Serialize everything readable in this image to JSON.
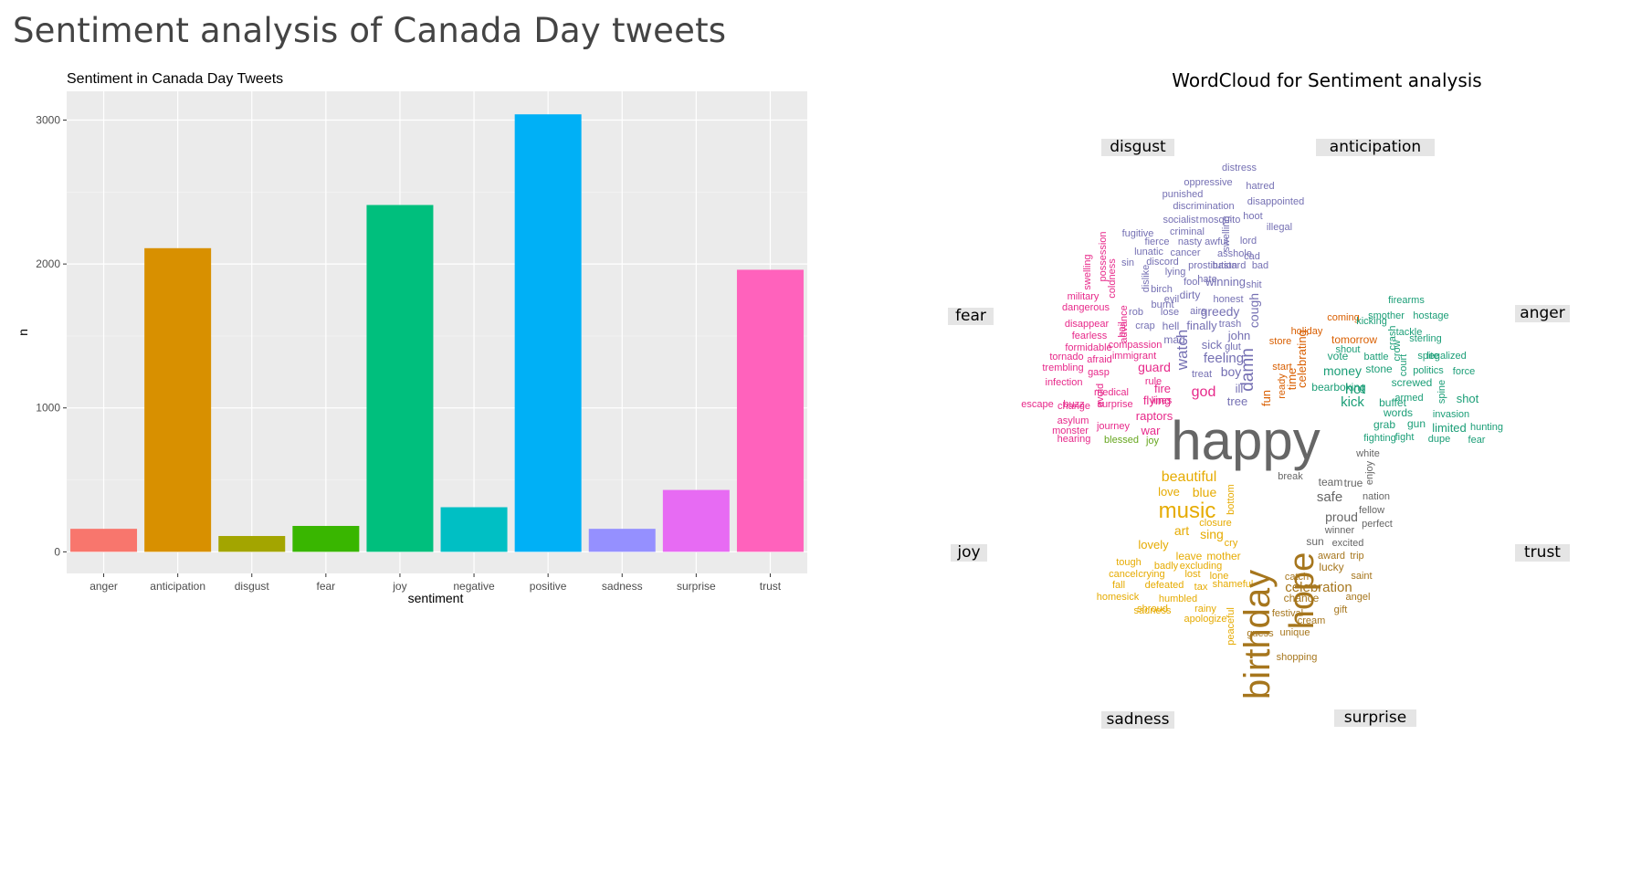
{
  "page_title": "Sentiment analysis of Canada Day tweets",
  "colors": {
    "panel_bg": "#EBEBEB",
    "grid": "#FFFFFF",
    "axis_text": "#4D4D4D",
    "title_text": "#000000",
    "label_box": "#E5E5E5"
  },
  "chart_data": [
    {
      "type": "bar",
      "title": "Sentiment in Canada Day Tweets",
      "xlabel": "sentiment",
      "ylabel": "n",
      "categories": [
        "anger",
        "anticipation",
        "disgust",
        "fear",
        "joy",
        "negative",
        "positive",
        "sadness",
        "surprise",
        "trust"
      ],
      "values": [
        160,
        2110,
        110,
        180,
        2410,
        310,
        3040,
        160,
        430,
        1960
      ],
      "colors": [
        "#F8766D",
        "#D89000",
        "#A3A500",
        "#39B600",
        "#00BF7D",
        "#00BFC4",
        "#00B0F6",
        "#9590FF",
        "#E76BF3",
        "#FF62BC"
      ],
      "yticks": [
        0,
        1000,
        2000,
        3000
      ],
      "ylim": [
        -150,
        3200
      ],
      "grid": true,
      "legend": "none"
    },
    {
      "type": "wordcloud",
      "title": "WordCloud for Sentiment analysis",
      "group_labels": [
        "disgust",
        "anticipation",
        "fear",
        "anger",
        "joy",
        "trust",
        "sadness",
        "surprise"
      ],
      "groups": [
        {
          "sentiment": "disgust",
          "color": "#7570B3",
          "words": [
            {
              "w": "distress",
              "s": 11
            },
            {
              "w": "oppressive",
              "s": 11
            },
            {
              "w": "hatred",
              "s": 11
            },
            {
              "w": "punished",
              "s": 11
            },
            {
              "w": "disappointed",
              "s": 11
            },
            {
              "w": "discrimination",
              "s": 11
            },
            {
              "w": "hoot",
              "s": 11
            },
            {
              "w": "socialist",
              "s": 11
            },
            {
              "w": "mosquito",
              "s": 11
            },
            {
              "w": "illegal",
              "s": 11
            },
            {
              "w": "fugitive",
              "s": 11
            },
            {
              "w": "criminal",
              "s": 11
            },
            {
              "w": "lord",
              "s": 11
            },
            {
              "w": "fierce",
              "s": 11
            },
            {
              "w": "nasty",
              "s": 11
            },
            {
              "w": "awful",
              "s": 11
            },
            {
              "w": "lunatic",
              "s": 11
            },
            {
              "w": "cancer",
              "s": 11
            },
            {
              "w": "asshole",
              "s": 11
            },
            {
              "w": "cad",
              "s": 11
            },
            {
              "w": "sin",
              "s": 11
            },
            {
              "w": "discord",
              "s": 11
            },
            {
              "w": "prostitution",
              "s": 11
            },
            {
              "w": "bastard",
              "s": 11
            },
            {
              "w": "bad",
              "s": 11
            },
            {
              "w": "lying",
              "s": 11
            },
            {
              "w": "hate",
              "s": 11
            },
            {
              "w": "birch",
              "s": 11
            },
            {
              "w": "fool",
              "s": 11
            },
            {
              "w": "winning",
              "s": 13
            },
            {
              "w": "shit",
              "s": 11
            },
            {
              "w": "evil",
              "s": 11
            },
            {
              "w": "dirty",
              "s": 12
            },
            {
              "w": "burnt",
              "s": 11
            },
            {
              "w": "honest",
              "s": 11
            },
            {
              "w": "rob",
              "s": 11
            },
            {
              "w": "lose",
              "s": 11
            },
            {
              "w": "airs",
              "s": 11
            },
            {
              "w": "greedy",
              "s": 14
            },
            {
              "w": "crap",
              "s": 11
            },
            {
              "w": "hell",
              "s": 12
            },
            {
              "w": "finally",
              "s": 13
            },
            {
              "w": "trash",
              "s": 11
            },
            {
              "w": "john",
              "s": 13
            },
            {
              "w": "mad",
              "s": 12
            },
            {
              "w": "sick",
              "s": 13
            },
            {
              "w": "glut",
              "s": 11
            },
            {
              "w": "feeling",
              "s": 15
            },
            {
              "w": "treat",
              "s": 11
            },
            {
              "w": "boy",
              "s": 14
            },
            {
              "w": "ill",
              "s": 13
            },
            {
              "w": "tree",
              "s": 13
            },
            {
              "w": "swelling",
              "s": 11
            },
            {
              "w": "dislike",
              "s": 11
            },
            {
              "w": "cough",
              "s": 14
            },
            {
              "w": "damn",
              "s": 19
            },
            {
              "w": "watch",
              "s": 17
            }
          ]
        },
        {
          "sentiment": "fear",
          "color": "#E7298A",
          "words": [
            {
              "w": "swelling",
              "s": 11
            },
            {
              "w": "possession",
              "s": 11
            },
            {
              "w": "military",
              "s": 11
            },
            {
              "w": "coldness",
              "s": 11
            },
            {
              "w": "dangerous",
              "s": 11
            },
            {
              "w": "advance",
              "s": 11
            },
            {
              "w": "disappear",
              "s": 11
            },
            {
              "w": "fearless",
              "s": 11
            },
            {
              "w": "formidable",
              "s": 11
            },
            {
              "w": "compassion",
              "s": 11
            },
            {
              "w": "tornado",
              "s": 11
            },
            {
              "w": "afraid",
              "s": 11
            },
            {
              "w": "immigrant",
              "s": 11
            },
            {
              "w": "trembling",
              "s": 11
            },
            {
              "w": "gasp",
              "s": 11
            },
            {
              "w": "guard",
              "s": 14
            },
            {
              "w": "infection",
              "s": 11
            },
            {
              "w": "avoid",
              "s": 11
            },
            {
              "w": "rule",
              "s": 11
            },
            {
              "w": "medical",
              "s": 11
            },
            {
              "w": "fire",
              "s": 13
            },
            {
              "w": "god",
              "s": 16
            },
            {
              "w": "buzz",
              "s": 11
            },
            {
              "w": "flying",
              "s": 13
            },
            {
              "w": "escape",
              "s": 11
            },
            {
              "w": "change",
              "s": 11
            },
            {
              "w": "surprise",
              "s": 11
            },
            {
              "w": "lines",
              "s": 11
            },
            {
              "w": "raptors",
              "s": 13
            },
            {
              "w": "asylum",
              "s": 11
            },
            {
              "w": "journey",
              "s": 11
            },
            {
              "w": "monster",
              "s": 11
            },
            {
              "w": "war",
              "s": 13
            },
            {
              "w": "hearing",
              "s": 11
            },
            {
              "w": "bail",
              "s": 11
            }
          ]
        },
        {
          "sentiment": "joy",
          "color": "#66A61E",
          "words": [
            {
              "w": "blessed",
              "s": 11
            },
            {
              "w": "joy",
              "s": 11
            }
          ]
        },
        {
          "sentiment": "happy",
          "color": "#666666",
          "words": [
            {
              "w": "happy",
              "s": 60
            }
          ]
        },
        {
          "sentiment": "anticipation",
          "color": "#D95F02",
          "words": [
            {
              "w": "holiday",
              "s": 11
            },
            {
              "w": "coming",
              "s": 11
            },
            {
              "w": "store",
              "s": 11
            },
            {
              "w": "tomorrow",
              "s": 12
            },
            {
              "w": "start",
              "s": 11
            },
            {
              "w": "ready",
              "s": 11
            },
            {
              "w": "celebrating",
              "s": 13
            },
            {
              "w": "time",
              "s": 13
            },
            {
              "w": "fun",
              "s": 13
            }
          ]
        },
        {
          "sentiment": "anger",
          "color": "#1B9E77",
          "words": [
            {
              "w": "firearms",
              "s": 11
            },
            {
              "w": "smother",
              "s": 11
            },
            {
              "w": "hostage",
              "s": 11
            },
            {
              "w": "kicking",
              "s": 11
            },
            {
              "w": "tackle",
              "s": 11
            },
            {
              "w": "shout",
              "s": 11
            },
            {
              "w": "sterling",
              "s": 11
            },
            {
              "w": "battle",
              "s": 11
            },
            {
              "w": "spite",
              "s": 11
            },
            {
              "w": "legalized",
              "s": 11
            },
            {
              "w": "vote",
              "s": 12
            },
            {
              "w": "politics",
              "s": 11
            },
            {
              "w": "force",
              "s": 11
            },
            {
              "w": "money",
              "s": 14
            },
            {
              "w": "stone",
              "s": 12
            },
            {
              "w": "screwed",
              "s": 12
            },
            {
              "w": "hot",
              "s": 16
            },
            {
              "w": "shot",
              "s": 13
            },
            {
              "w": "bearboxing",
              "s": 12
            },
            {
              "w": "armed",
              "s": 11
            },
            {
              "w": "kick",
              "s": 15
            },
            {
              "w": "buffet",
              "s": 12
            },
            {
              "w": "words",
              "s": 12
            },
            {
              "w": "invasion",
              "s": 11
            },
            {
              "w": "grab",
              "s": 12
            },
            {
              "w": "gun",
              "s": 12
            },
            {
              "w": "hunting",
              "s": 11
            },
            {
              "w": "fighting",
              "s": 11
            },
            {
              "w": "limited",
              "s": 13
            },
            {
              "w": "fight",
              "s": 11
            },
            {
              "w": "dupe",
              "s": 11
            },
            {
              "w": "fear",
              "s": 11
            },
            {
              "w": "spine",
              "s": 11
            },
            {
              "w": "crow",
              "s": 11
            },
            {
              "w": "court",
              "s": 11
            },
            {
              "w": "crash",
              "s": 11
            }
          ]
        },
        {
          "sentiment": "trust",
          "color": "#666666",
          "words": [
            {
              "w": "white",
              "s": 11
            },
            {
              "w": "enjoy",
              "s": 11
            },
            {
              "w": "break",
              "s": 11
            },
            {
              "w": "team",
              "s": 12
            },
            {
              "w": "true",
              "s": 12
            },
            {
              "w": "safe",
              "s": 15
            },
            {
              "w": "nation",
              "s": 11
            },
            {
              "w": "fellow",
              "s": 11
            },
            {
              "w": "proud",
              "s": 14
            },
            {
              "w": "perfect",
              "s": 11
            },
            {
              "w": "winner",
              "s": 11
            },
            {
              "w": "sun",
              "s": 12
            },
            {
              "w": "excited",
              "s": 11
            }
          ]
        },
        {
          "sentiment": "sadness",
          "color": "#E6AB02",
          "words": [
            {
              "w": "beautiful",
              "s": 16
            },
            {
              "w": "love",
              "s": 13
            },
            {
              "w": "blue",
              "s": 14
            },
            {
              "w": "music",
              "s": 24
            },
            {
              "w": "bottom",
              "s": 11
            },
            {
              "w": "closure",
              "s": 11
            },
            {
              "w": "art",
              "s": 14
            },
            {
              "w": "sing",
              "s": 14
            },
            {
              "w": "cry",
              "s": 11
            },
            {
              "w": "lovely",
              "s": 13
            },
            {
              "w": "leave",
              "s": 12
            },
            {
              "w": "mother",
              "s": 12
            },
            {
              "w": "tough",
              "s": 11
            },
            {
              "w": "badly",
              "s": 11
            },
            {
              "w": "excluding",
              "s": 11
            },
            {
              "w": "cancel",
              "s": 11
            },
            {
              "w": "crying",
              "s": 11
            },
            {
              "w": "lost",
              "s": 11
            },
            {
              "w": "lone",
              "s": 11
            },
            {
              "w": "fall",
              "s": 11
            },
            {
              "w": "defeated",
              "s": 11
            },
            {
              "w": "tax",
              "s": 11
            },
            {
              "w": "shameful",
              "s": 11
            },
            {
              "w": "homesick",
              "s": 11
            },
            {
              "w": "humbled",
              "s": 11
            },
            {
              "w": "shroud",
              "s": 11
            },
            {
              "w": "rainy",
              "s": 11
            },
            {
              "w": "sadness",
              "s": 11
            },
            {
              "w": "apologize",
              "s": 11
            },
            {
              "w": "peaceful",
              "s": 11
            }
          ]
        },
        {
          "sentiment": "surprise",
          "color": "#A6761D",
          "words": [
            {
              "w": "birthday",
              "s": 40
            },
            {
              "w": "hope",
              "s": 38
            },
            {
              "w": "celebration",
              "s": 15
            },
            {
              "w": "award",
              "s": 11
            },
            {
              "w": "trip",
              "s": 11
            },
            {
              "w": "lucky",
              "s": 12
            },
            {
              "w": "catch",
              "s": 11
            },
            {
              "w": "saint",
              "s": 11
            },
            {
              "w": "chance",
              "s": 12
            },
            {
              "w": "angel",
              "s": 11
            },
            {
              "w": "festival",
              "s": 11
            },
            {
              "w": "gift",
              "s": 11
            },
            {
              "w": "cream",
              "s": 11
            },
            {
              "w": "guess",
              "s": 11
            },
            {
              "w": "unique",
              "s": 11
            },
            {
              "w": "shopping",
              "s": 11
            }
          ]
        }
      ]
    }
  ]
}
